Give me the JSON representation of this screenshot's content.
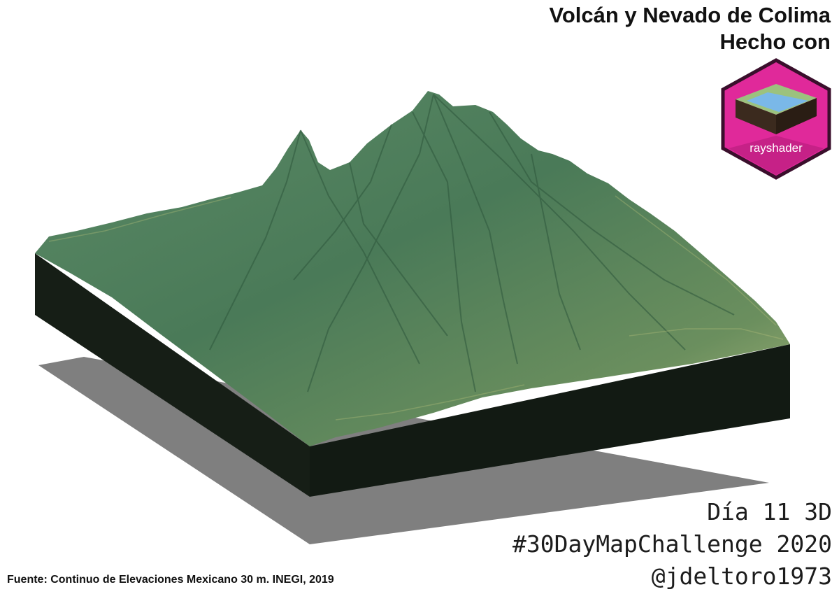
{
  "title": {
    "line1": "Volcán y Nevado de Colima",
    "line2": "Hecho con"
  },
  "logo": {
    "label": "rayshader",
    "icon": "rayshader-hex-logo",
    "colors": {
      "hex_fill": "#e0299a",
      "hex_border": "#3a0f2c",
      "water": "#7ab8e8",
      "land": "#9cc27e"
    }
  },
  "footer": {
    "day": "Día 11 3D",
    "challenge": "#30DayMapChallenge 2020",
    "handle": "@jdeltoro1973",
    "source": "Fuente: Continuo de Elevaciones Mexicano 30 m. INEGI, 2019"
  },
  "render": {
    "terrain_color": "#4e7d5c",
    "highlight_color": "#b8c27a",
    "base_color": "#141c14",
    "shadow_color": "#7d7d7d"
  }
}
